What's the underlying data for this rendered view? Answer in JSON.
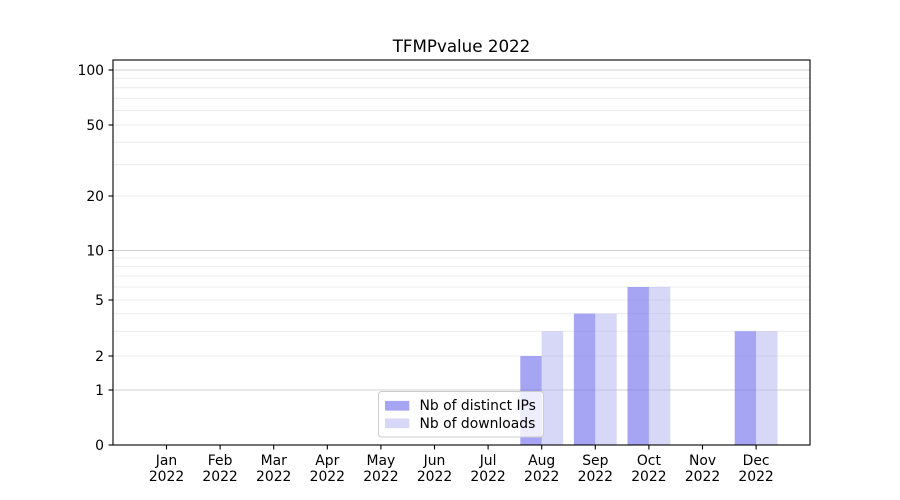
{
  "chart_data": {
    "type": "bar",
    "title": "TFMPvalue 2022",
    "categories": [
      "Jan",
      "Feb",
      "Mar",
      "Apr",
      "May",
      "Jun",
      "Jul",
      "Aug",
      "Sep",
      "Oct",
      "Nov",
      "Dec"
    ],
    "category_year": "2022",
    "series": [
      {
        "name": "Nb of distinct IPs",
        "color": "rgba(110,110,235,0.62)",
        "values": [
          0,
          0,
          0,
          0,
          0,
          0,
          0,
          2,
          4,
          6,
          0,
          3
        ]
      },
      {
        "name": "Nb of downloads",
        "color": "rgba(175,175,240,0.5)",
        "values": [
          0,
          0,
          0,
          0,
          0,
          0,
          0,
          3,
          4,
          6,
          0,
          3
        ]
      }
    ],
    "yscale": "symlog",
    "ylim": [
      0,
      115
    ],
    "yticks": [
      0,
      1,
      2,
      5,
      10,
      20,
      50,
      100
    ],
    "major_grid_values": [
      1,
      10,
      100
    ],
    "minor_grid_values": [
      2,
      3,
      4,
      5,
      6,
      7,
      8,
      9,
      20,
      30,
      40,
      50,
      60,
      70,
      80,
      90
    ],
    "xlabel": "",
    "ylabel": "",
    "grid": true,
    "legend_position": "lower center"
  },
  "colors": {
    "background": "#ffffff",
    "axis": "#000000",
    "grid_major": "#d0d0d0",
    "grid_minor": "#ececec",
    "legend_border": "#cccccc",
    "legend_background": "rgba(255,255,255,0.8)"
  }
}
